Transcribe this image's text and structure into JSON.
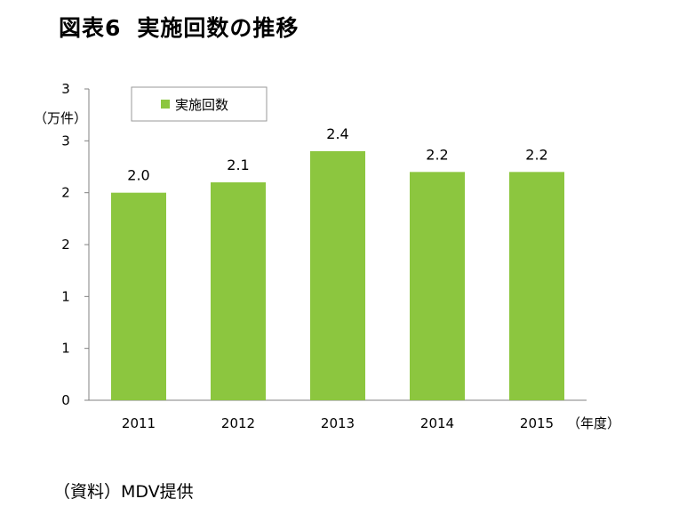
{
  "title": {
    "prefix": "図表6",
    "main": "実施回数の推移"
  },
  "y_unit": "（万件）",
  "x_unit": "（年度）",
  "source": "（資料）MDV提供",
  "colors": {
    "bar": "#8cc63f",
    "axis": "#808080"
  },
  "chart_data": {
    "type": "bar",
    "title": "図表6 実施回数の推移",
    "xlabel": "（年度）",
    "ylabel": "（万件）",
    "categories": [
      "2011",
      "2012",
      "2013",
      "2014",
      "2015"
    ],
    "series": [
      {
        "name": "実施回数",
        "values": [
          2.0,
          2.1,
          2.4,
          2.2,
          2.2
        ],
        "labels": [
          "2.0",
          "2.1",
          "2.4",
          "2.2",
          "2.2"
        ]
      }
    ],
    "ylim": [
      0,
      3
    ],
    "yticks": [
      0,
      0.5,
      1.0,
      1.5,
      2.0,
      2.5,
      3.0
    ],
    "ytick_labels": [
      "0",
      "1",
      "1",
      "2",
      "2",
      "3",
      "3"
    ],
    "grid": false,
    "legend_position": "top-left"
  }
}
